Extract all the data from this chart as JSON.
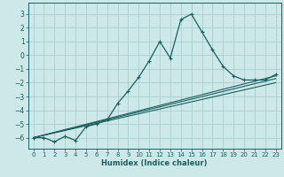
{
  "xlabel": "Humidex (Indice chaleur)",
  "bg_color": "#cce8e8",
  "grid_color": "#aacece",
  "line_color": "#1a6060",
  "xlim": [
    -0.5,
    23.5
  ],
  "ylim": [
    -6.8,
    3.8
  ],
  "xticks": [
    0,
    1,
    2,
    3,
    4,
    5,
    6,
    7,
    8,
    9,
    10,
    11,
    12,
    13,
    14,
    15,
    16,
    17,
    18,
    19,
    20,
    21,
    22,
    23
  ],
  "yticks": [
    -6,
    -5,
    -4,
    -3,
    -2,
    -1,
    0,
    1,
    2,
    3
  ],
  "series1_x": [
    0,
    1,
    2,
    3,
    4,
    5,
    6,
    7,
    8,
    9,
    10,
    11,
    12,
    13,
    14,
    15,
    16,
    17,
    18,
    19,
    20,
    21,
    22,
    23
  ],
  "series1_y": [
    -6.0,
    -6.0,
    -6.3,
    -5.9,
    -6.2,
    -5.2,
    -5.0,
    -4.7,
    -3.5,
    -2.6,
    -1.6,
    -0.4,
    1.0,
    -0.2,
    2.6,
    3.0,
    1.7,
    0.4,
    -0.8,
    -1.5,
    -1.8,
    -1.8,
    -1.8,
    -1.4
  ],
  "trend1_x": [
    0,
    23
  ],
  "trend1_y": [
    -6.0,
    -1.5
  ],
  "trend2_x": [
    0,
    23
  ],
  "trend2_y": [
    -6.0,
    -1.7
  ],
  "trend3_x": [
    0,
    23
  ],
  "trend3_y": [
    -6.0,
    -2.0
  ]
}
